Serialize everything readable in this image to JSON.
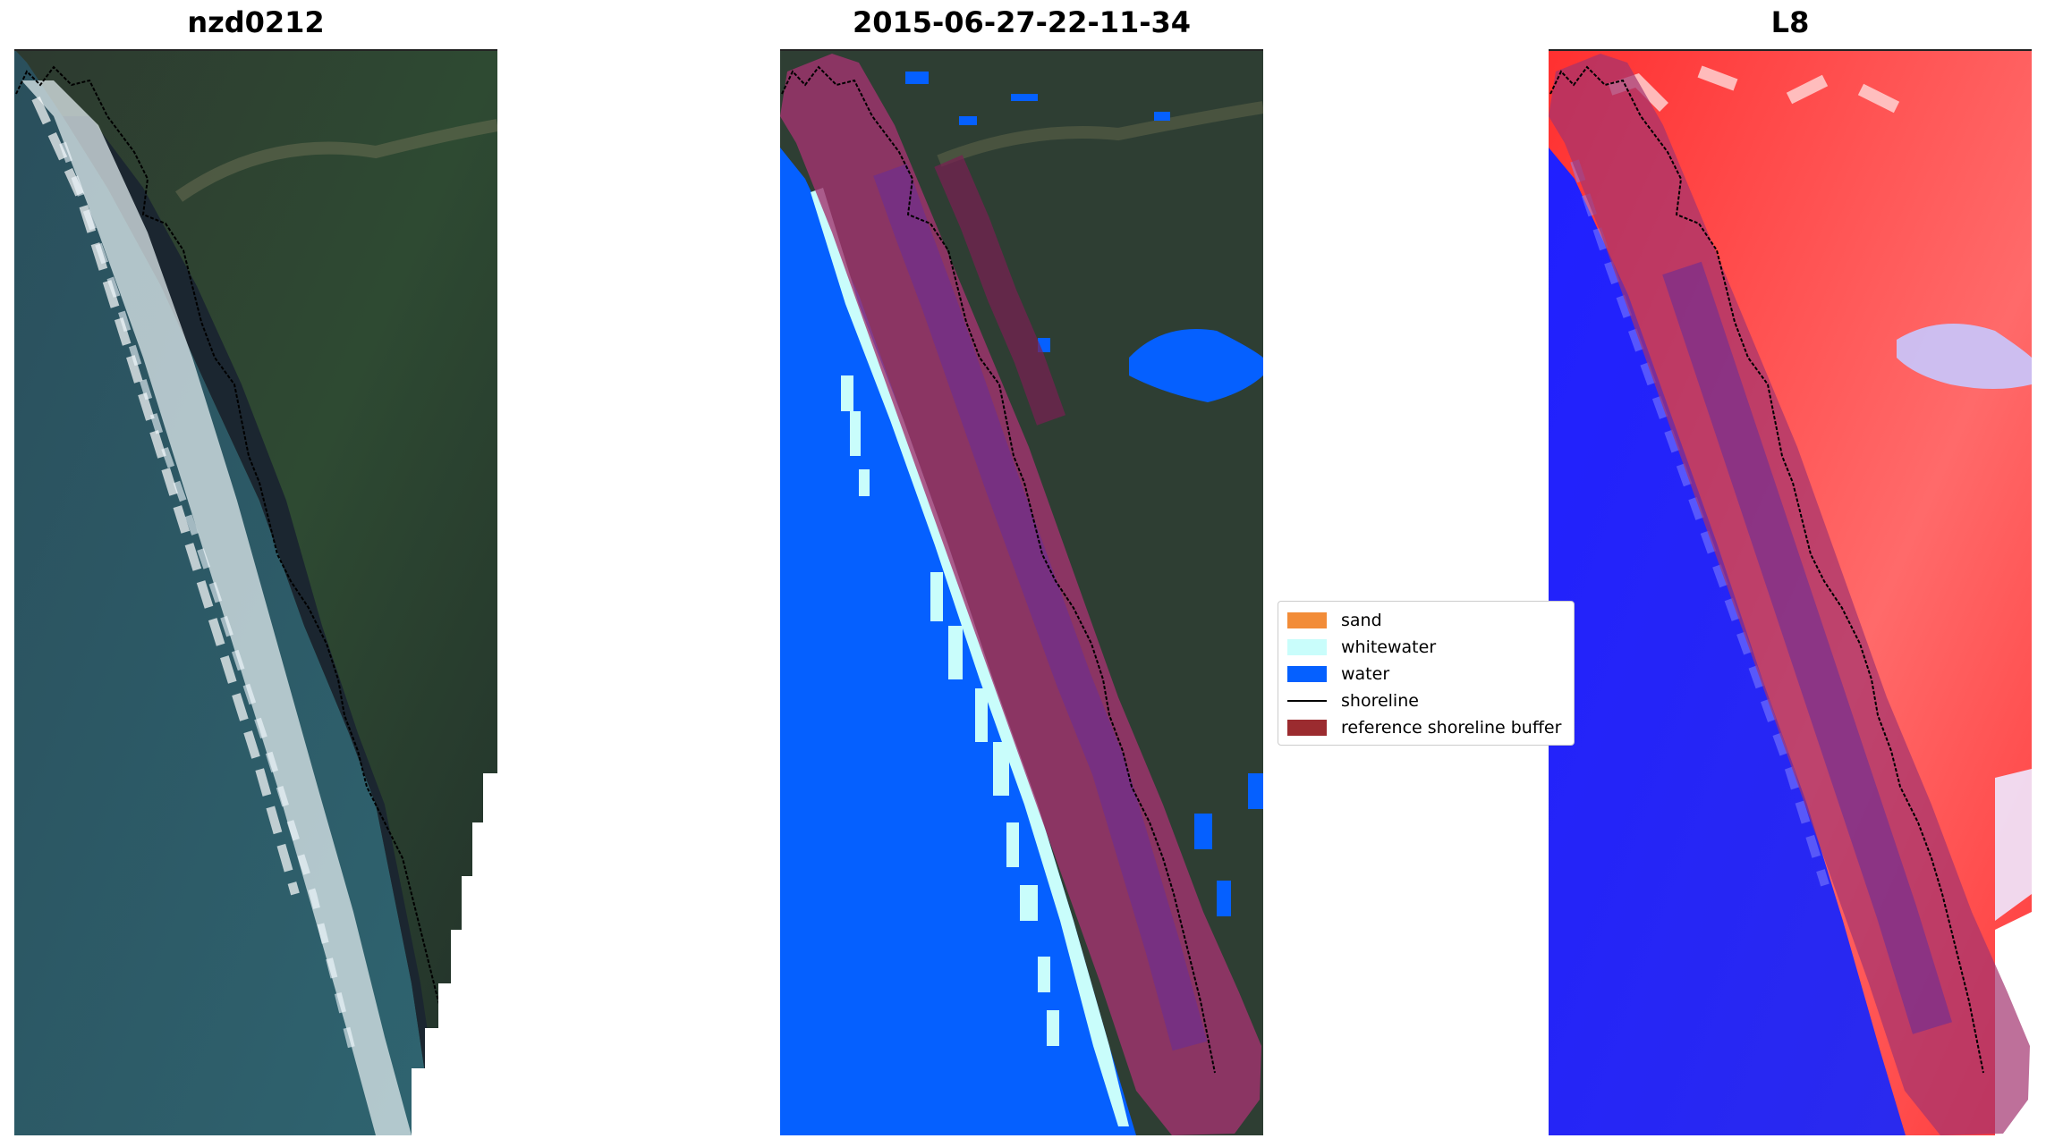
{
  "panels": [
    {
      "title": "nzd0212"
    },
    {
      "title": "2015-06-27-22-11-34"
    },
    {
      "title": "L8"
    }
  ],
  "legend": {
    "items": [
      {
        "label": "sand",
        "color": "#f28c38"
      },
      {
        "label": "whitewater",
        "color": "#c9fdfb"
      },
      {
        "label": "water",
        "color": "#0560ff"
      },
      {
        "label": "shoreline",
        "color": "#000000"
      },
      {
        "label": "reference shoreline buffer",
        "color": "#9b2b2f"
      }
    ]
  },
  "colors": {
    "land": "#2c3a2c",
    "ocean": "#2b5562",
    "surf": "#e4eef0",
    "water_class": "#0560ff",
    "whitewater_class": "#c9fdfb",
    "buffer": "#a3336f",
    "index_positive": "#ff2a2a",
    "index_negative": "#1a1aff"
  }
}
